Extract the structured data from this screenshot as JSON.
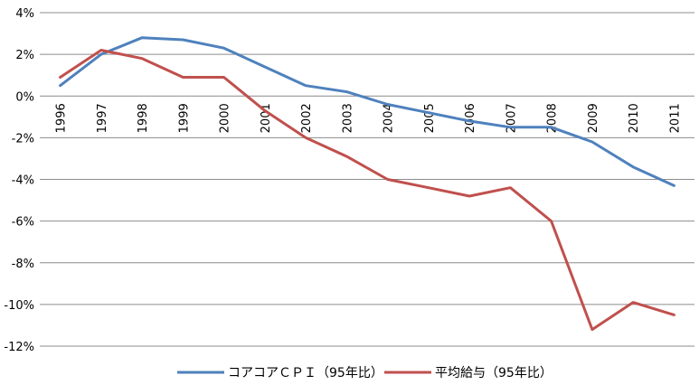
{
  "chart_data": {
    "type": "line",
    "title": "",
    "xlabel": "",
    "ylabel": "",
    "x": [
      "1996",
      "1997",
      "1998",
      "1999",
      "2000",
      "2001",
      "2002",
      "2003",
      "2004",
      "2005",
      "2006",
      "2007",
      "2008",
      "2009",
      "2010",
      "2011"
    ],
    "ylim": [
      -12,
      4
    ],
    "yticks": [
      4,
      2,
      0,
      -2,
      -4,
      -6,
      -8,
      -10,
      -12
    ],
    "ytick_labels": [
      "4%",
      "2%",
      "0%",
      "-2%",
      "-4%",
      "-6%",
      "-8%",
      "-10%",
      "-12%"
    ],
    "grid": true,
    "legend_position": "bottom",
    "series": [
      {
        "name": "コアコアＣＰＩ（95年比）",
        "color": "#4f81bd",
        "values": [
          0.5,
          2.0,
          2.8,
          2.7,
          2.3,
          1.4,
          0.5,
          0.2,
          -0.4,
          -0.8,
          -1.2,
          -1.5,
          -1.5,
          -2.2,
          -3.4,
          -4.3
        ]
      },
      {
        "name": "平均給与（95年比）",
        "color": "#c0504d",
        "values": [
          0.9,
          2.2,
          1.8,
          0.9,
          0.9,
          -0.7,
          -2.0,
          -2.9,
          -4.0,
          -4.4,
          -4.8,
          -4.4,
          -6.0,
          -11.2,
          -9.9,
          -10.5
        ]
      }
    ]
  }
}
